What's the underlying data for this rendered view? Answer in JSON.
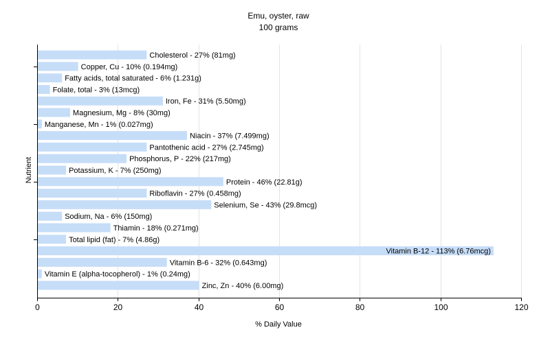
{
  "chart_data": {
    "type": "bar",
    "orientation": "horizontal",
    "title": "Emu, oyster, raw",
    "subtitle": "100 grams",
    "xlabel": "% Daily Value",
    "ylabel": "Nutrient",
    "xlim": [
      0,
      120
    ],
    "xticks": [
      0,
      20,
      40,
      60,
      80,
      100,
      120
    ],
    "grid": true,
    "bar_color": "#c6ddf8",
    "grid_color": "#e3e3e3",
    "bars": [
      {
        "label": "Cholesterol - 27% (81mg)",
        "value": 27
      },
      {
        "label": "Copper, Cu - 10% (0.194mg)",
        "value": 10
      },
      {
        "label": "Fatty acids, total saturated - 6% (1.231g)",
        "value": 6
      },
      {
        "label": "Folate, total - 3% (13mcg)",
        "value": 3
      },
      {
        "label": "Iron, Fe - 31% (5.50mg)",
        "value": 31
      },
      {
        "label": "Magnesium, Mg - 8% (30mg)",
        "value": 8
      },
      {
        "label": "Manganese, Mn - 1% (0.027mg)",
        "value": 1
      },
      {
        "label": "Niacin - 37% (7.499mg)",
        "value": 37
      },
      {
        "label": "Pantothenic acid - 27% (2.745mg)",
        "value": 27
      },
      {
        "label": "Phosphorus, P - 22% (217mg)",
        "value": 22
      },
      {
        "label": "Potassium, K - 7% (250mg)",
        "value": 7
      },
      {
        "label": "Protein - 46% (22.81g)",
        "value": 46
      },
      {
        "label": "Riboflavin - 27% (0.458mg)",
        "value": 27
      },
      {
        "label": "Selenium, Se - 43% (29.8mcg)",
        "value": 43
      },
      {
        "label": "Sodium, Na - 6% (150mg)",
        "value": 6
      },
      {
        "label": "Thiamin - 18% (0.271mg)",
        "value": 18
      },
      {
        "label": "Total lipid (fat) - 7% (4.86g)",
        "value": 7
      },
      {
        "label": "Vitamin B-12 - 113% (6.76mcg)",
        "value": 113
      },
      {
        "label": "Vitamin B-6 - 32% (0.643mg)",
        "value": 32
      },
      {
        "label": "Vitamin E (alpha-tocopherol) - 1% (0.24mg)",
        "value": 1
      },
      {
        "label": "Zinc, Zn - 40% (6.00mg)",
        "value": 40
      }
    ]
  }
}
